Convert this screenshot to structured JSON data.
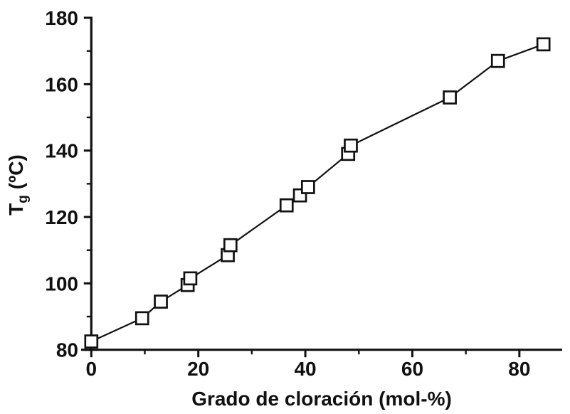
{
  "chart_data": {
    "type": "line",
    "title": "",
    "xlabel": "Grado de cloración (mol-%)",
    "ylabel": {
      "prefix": "T",
      "sub": "g",
      "suffix": " (ºC)"
    },
    "xlim": [
      0,
      88
    ],
    "ylim": [
      80,
      180
    ],
    "x_major_ticks": [
      0,
      20,
      40,
      60,
      80
    ],
    "x_minor_ticks": [
      10,
      30,
      50,
      70
    ],
    "y_major_ticks": [
      80,
      100,
      120,
      140,
      160,
      180
    ],
    "y_minor_ticks": [
      90,
      110,
      130,
      150,
      170
    ],
    "grid": false,
    "legend": "none",
    "marker": "open-square",
    "series": [
      {
        "name": "Tg",
        "points": [
          [
            0,
            82.5
          ],
          [
            9.5,
            89.5
          ],
          [
            13,
            94.5
          ],
          [
            18,
            99.5
          ],
          [
            18.5,
            101.5
          ],
          [
            25.5,
            108.5
          ],
          [
            26,
            111.5
          ],
          [
            36.5,
            123.5
          ],
          [
            39,
            126.5
          ],
          [
            40.5,
            129
          ],
          [
            48,
            139
          ],
          [
            48.5,
            141.5
          ],
          [
            67,
            156
          ],
          [
            76,
            167
          ],
          [
            84.5,
            172
          ]
        ]
      }
    ],
    "colors": {
      "line": "#111111",
      "marker_fill": "#ffffff",
      "axis": "#111111",
      "text": "#111111",
      "background": "#ffffff"
    }
  }
}
